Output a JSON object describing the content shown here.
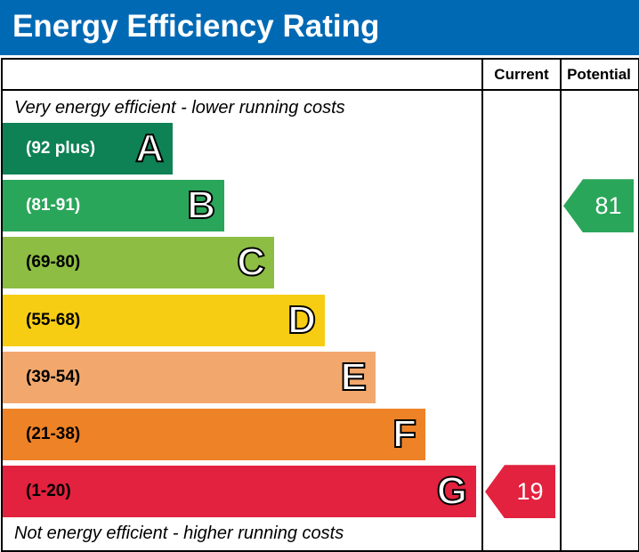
{
  "title": "Energy Efficiency Rating",
  "columns": {
    "current": "Current",
    "potential": "Potential"
  },
  "notes": {
    "top": "Very energy efficient - lower running costs",
    "bottom": "Not energy efficient - higher running costs"
  },
  "chart_data": {
    "type": "bar",
    "title": "Energy Efficiency Rating",
    "categories": [
      "A",
      "B",
      "C",
      "D",
      "E",
      "F",
      "G"
    ],
    "ranges": [
      "(92 plus)",
      "(81-91)",
      "(69-80)",
      "(55-68)",
      "(39-54)",
      "(21-38)",
      "(1-20)"
    ],
    "colors": [
      "#0f8255",
      "#2aa65a",
      "#8dbd43",
      "#f7cd13",
      "#f2a86d",
      "#ee8227",
      "#e2223e"
    ],
    "current": {
      "value": 19,
      "band": "G",
      "color": "#e2223e"
    },
    "potential": {
      "value": 81,
      "band": "B",
      "color": "#2aa65a"
    }
  }
}
